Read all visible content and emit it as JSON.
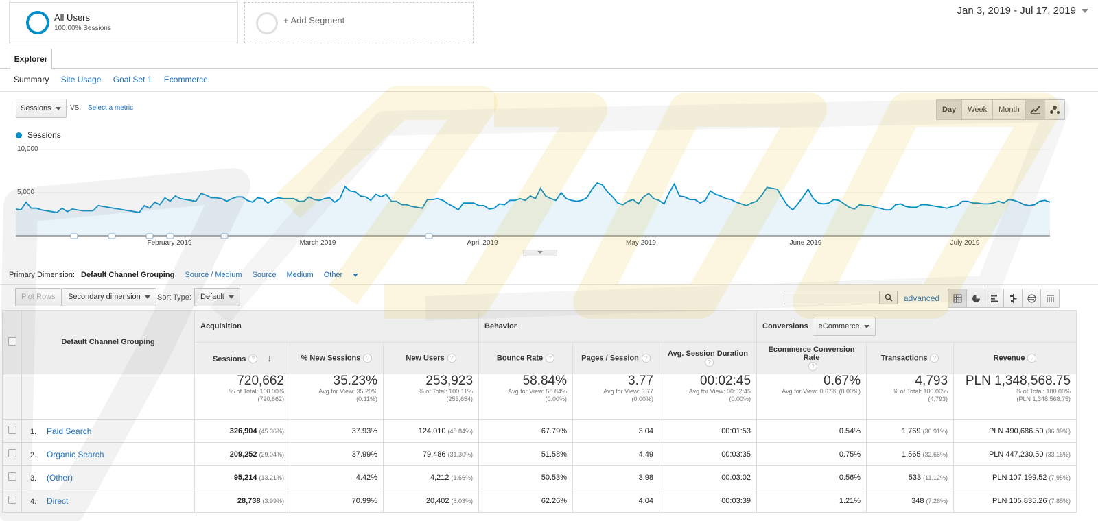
{
  "segments": {
    "all_users": {
      "title": "All Users",
      "subtitle": "100.00% Sessions"
    },
    "add_segment": "+ Add Segment"
  },
  "date_range": "Jan 3, 2019 - Jul 17, 2019",
  "tabs": {
    "explorer": "Explorer",
    "subtabs": [
      "Summary",
      "Site Usage",
      "Goal Set 1",
      "Ecommerce"
    ]
  },
  "chart_controls": {
    "metric": "Sessions",
    "vs": "VS.",
    "select_metric": "Select a metric",
    "granularity": [
      "Day",
      "Week",
      "Month"
    ],
    "active_granularity": "Day"
  },
  "chart_data": {
    "type": "line",
    "series": [
      {
        "name": "Sessions",
        "color": "#058dc7"
      }
    ],
    "y_ticks": [
      "10,000",
      "5,000"
    ],
    "ylim": [
      0,
      10000
    ],
    "x_ticks": [
      "February 2019",
      "March 2019",
      "April 2019",
      "May 2019",
      "June 2019",
      "July 2019"
    ],
    "values": [
      3100,
      3000,
      3900,
      3200,
      3200,
      3000,
      2900,
      2800,
      2700,
      3200,
      2800,
      3100,
      3000,
      2900,
      2900,
      2900,
      3500,
      3400,
      3300,
      3200,
      3100,
      3000,
      2900,
      2800,
      2700,
      3500,
      3200,
      3900,
      3600,
      4400,
      4000,
      4600,
      4300,
      4200,
      4100,
      4000,
      4900,
      4700,
      4400,
      4400,
      4300,
      4000,
      4300,
      4500,
      4500,
      4100,
      3900,
      4400,
      4300,
      3800,
      4200,
      4400,
      4300,
      4300,
      4300,
      4000,
      4000,
      4500,
      4200,
      4100,
      4300,
      4400,
      3900,
      4300,
      5700,
      5200,
      5100,
      4600,
      4500,
      4100,
      4800,
      4500,
      4800,
      4000,
      4000,
      3600,
      3600,
      3400,
      3300,
      3200,
      4200,
      4200,
      4300,
      4100,
      3700,
      3400,
      3000,
      3800,
      3800,
      3800,
      3500,
      3500,
      3100,
      3200,
      3700,
      3600,
      4100,
      4100,
      4300,
      4100,
      4600,
      4300,
      5500,
      4600,
      4300,
      4100,
      5000,
      4300,
      4100,
      4000,
      4100,
      4400,
      5400,
      6100,
      5900,
      5100,
      4500,
      3800,
      3600,
      4000,
      4200,
      3700,
      4500,
      4900,
      4300,
      4100,
      3700,
      5000,
      6000,
      4600,
      4500,
      4200,
      4200,
      3800,
      4100,
      5200,
      4800,
      4600,
      4300,
      4200,
      3900,
      3700,
      3500,
      3800,
      4000,
      4700,
      5600,
      5500,
      5400,
      4400,
      3500,
      3000,
      3700,
      4500,
      5400,
      4300,
      3800,
      3700,
      3800,
      4200,
      4100,
      3700,
      3300,
      3100,
      3600,
      3500,
      3500,
      3300,
      3200,
      3000,
      3000,
      3600,
      3700,
      3400,
      3300,
      3300,
      3600,
      3600,
      3500,
      3400,
      3300,
      3200,
      3400,
      3500,
      4000,
      4000,
      3800,
      3800,
      3700,
      3700,
      3800,
      4000,
      3800,
      4200,
      4100,
      3900,
      3600,
      3500,
      3600,
      4000,
      4100,
      3900
    ]
  },
  "primary_dimension": {
    "label": "Primary Dimension:",
    "active": "Default Channel Grouping",
    "options": [
      "Source / Medium",
      "Source",
      "Medium",
      "Other"
    ]
  },
  "toolbar": {
    "plot_rows": "Plot Rows",
    "secondary_dimension": "Secondary dimension",
    "sort_type_label": "Sort Type:",
    "sort_type": "Default",
    "advanced": "advanced"
  },
  "table": {
    "dimension_header": "Default Channel Grouping",
    "groups": {
      "acquisition": "Acquisition",
      "behavior": "Behavior",
      "conversions": "Conversions",
      "conversions_dropdown": "eCommerce"
    },
    "columns": [
      "Sessions",
      "% New Sessions",
      "New Users",
      "Bounce Rate",
      "Pages / Session",
      "Avg. Session Duration",
      "Ecommerce Conversion Rate",
      "Transactions",
      "Revenue"
    ],
    "totals": [
      {
        "value": "720,662",
        "l1": "% of Total: 100.00%",
        "l2": "(720,662)"
      },
      {
        "value": "35.23%",
        "l1": "Avg for View: 35.20%",
        "l2": "(0.11%)"
      },
      {
        "value": "253,923",
        "l1": "% of Total: 100.11%",
        "l2": "(253,654)"
      },
      {
        "value": "58.84%",
        "l1": "Avg for View: 58.84%",
        "l2": "(0.00%)"
      },
      {
        "value": "3.77",
        "l1": "Avg for View: 3.77",
        "l2": "(0.00%)"
      },
      {
        "value": "00:02:45",
        "l1": "Avg for View: 00:02:45",
        "l2": "(0.00%)"
      },
      {
        "value": "0.67%",
        "l1": "Avg for View: 0.67% (0.00%)",
        "l2": ""
      },
      {
        "value": "4,793",
        "l1": "% of Total: 100.00%",
        "l2": "(4,793)"
      },
      {
        "value": "PLN 1,348,568.75",
        "l1": "% of Total: 100.00%",
        "l2": "(PLN 1,348,568.75)"
      }
    ],
    "rows": [
      {
        "idx": "1.",
        "name": "Paid Search",
        "sessions": "326,904",
        "sessions_pct": "(45.36%)",
        "new_sess": "37.93%",
        "new_users": "124,010",
        "new_users_pct": "(48.84%)",
        "bounce": "67.79%",
        "pages": "3.04",
        "duration": "00:01:53",
        "conv": "0.54%",
        "trans": "1,769",
        "trans_pct": "(36.91%)",
        "revenue": "PLN 490,686.50",
        "revenue_pct": "(36.39%)"
      },
      {
        "idx": "2.",
        "name": "Organic Search",
        "sessions": "209,252",
        "sessions_pct": "(29.04%)",
        "new_sess": "37.99%",
        "new_users": "79,486",
        "new_users_pct": "(31.30%)",
        "bounce": "51.58%",
        "pages": "4.49",
        "duration": "00:03:35",
        "conv": "0.75%",
        "trans": "1,565",
        "trans_pct": "(32.65%)",
        "revenue": "PLN 447,230.50",
        "revenue_pct": "(33.16%)"
      },
      {
        "idx": "3.",
        "name": "(Other)",
        "sessions": "95,214",
        "sessions_pct": "(13.21%)",
        "new_sess": "4.42%",
        "new_users": "4,212",
        "new_users_pct": "(1.66%)",
        "bounce": "50.53%",
        "pages": "3.98",
        "duration": "00:03:02",
        "conv": "0.56%",
        "trans": "533",
        "trans_pct": "(11.12%)",
        "revenue": "PLN 107,199.52",
        "revenue_pct": "(7.95%)"
      },
      {
        "idx": "4.",
        "name": "Direct",
        "sessions": "28,738",
        "sessions_pct": "(3.99%)",
        "new_sess": "70.99%",
        "new_users": "20,402",
        "new_users_pct": "(8.03%)",
        "bounce": "62.26%",
        "pages": "4.04",
        "duration": "00:03:39",
        "conv": "1.21%",
        "trans": "348",
        "trans_pct": "(7.26%)",
        "revenue": "PLN 105,835.26",
        "revenue_pct": "(7.85%)"
      }
    ]
  }
}
